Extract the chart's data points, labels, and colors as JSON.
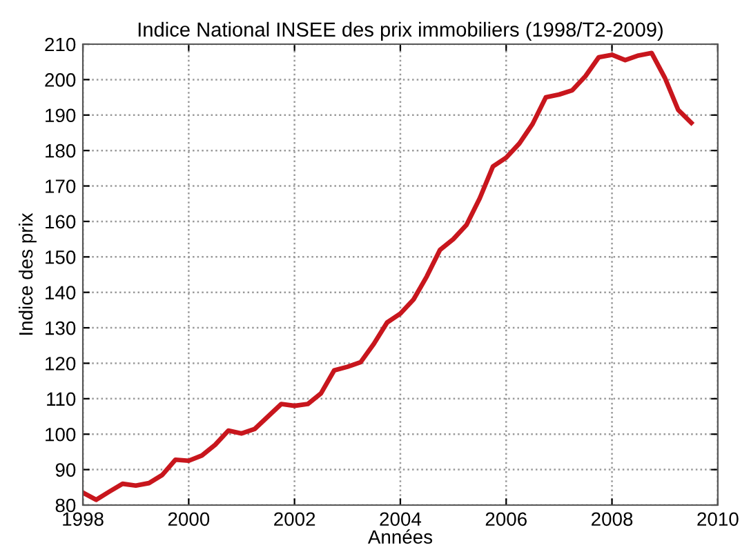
{
  "chart_data": {
    "type": "line",
    "title": "Indice National INSEE des prix immobiliers (1998/T2-2009)",
    "xlabel": "Années",
    "ylabel": "Indice des prix",
    "x": [
      1998,
      1998.25,
      1998.5,
      1998.75,
      1999,
      1999.25,
      1999.5,
      1999.75,
      2000,
      2000.25,
      2000.5,
      2000.75,
      2001,
      2001.25,
      2001.5,
      2001.75,
      2002,
      2002.25,
      2002.5,
      2002.75,
      2003,
      2003.25,
      2003.5,
      2003.75,
      2004,
      2004.25,
      2004.5,
      2004.75,
      2005,
      2005.25,
      2005.5,
      2005.75,
      2006,
      2006.25,
      2006.5,
      2006.75,
      2007,
      2007.25,
      2007.5,
      2007.75,
      2008,
      2008.25,
      2008.5,
      2008.75,
      2009,
      2009.25,
      2009.5
    ],
    "series": [
      {
        "color": "#c8161d",
        "values": [
          83.5,
          81.5,
          83.8,
          86,
          85.5,
          86.2,
          88.5,
          92.8,
          92.5,
          94,
          97,
          101,
          100.2,
          101.5,
          105,
          108.5,
          108,
          108.5,
          111.5,
          118,
          119,
          120.3,
          125.5,
          131.5,
          134,
          138,
          144.5,
          152,
          155,
          159,
          166.5,
          175.5,
          178,
          182,
          187.5,
          195,
          195.8,
          197,
          201,
          206.3,
          207,
          205.5,
          206.8,
          207.5,
          200.5,
          191.5,
          187.8
        ]
      }
    ],
    "xlim": [
      1998,
      2010
    ],
    "xticks": [
      1998,
      2000,
      2002,
      2004,
      2006,
      2008,
      2010
    ],
    "ylim": [
      80,
      210
    ],
    "yticks": [
      80,
      90,
      100,
      110,
      120,
      130,
      140,
      150,
      160,
      170,
      180,
      190,
      200,
      210
    ],
    "grid": true,
    "marker": "none",
    "line_style": "solid"
  }
}
